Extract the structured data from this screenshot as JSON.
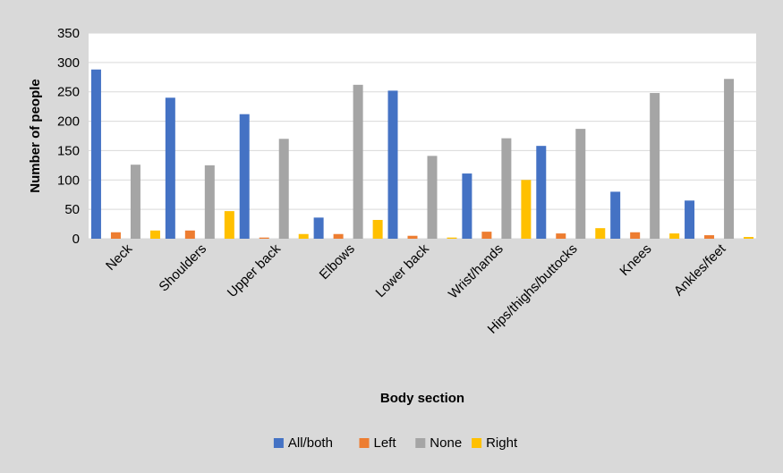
{
  "chart_data": {
    "type": "bar",
    "title": "",
    "xlabel": "Body section",
    "ylabel": "Number of people",
    "ylim": [
      0,
      350
    ],
    "y_ticks": [
      0,
      50,
      100,
      150,
      200,
      250,
      300,
      350
    ],
    "grid": true,
    "legend_position": "bottom",
    "categories": [
      "Neck",
      "Shoulders",
      "Upper back",
      "Elbows",
      "Lower back",
      "Wrist/hands",
      "Hips/thighs/buttocks",
      "Knees",
      "Ankles/feet"
    ],
    "series": [
      {
        "name": "All/both",
        "color": "#4472c4",
        "values": [
          288,
          240,
          212,
          36,
          252,
          111,
          158,
          80,
          65
        ]
      },
      {
        "name": "Left",
        "color": "#ed7d31",
        "values": [
          11,
          14,
          2,
          8,
          5,
          12,
          9,
          11,
          6
        ]
      },
      {
        "name": "None",
        "color": "#a5a5a5",
        "values": [
          126,
          125,
          170,
          262,
          141,
          171,
          187,
          248,
          272
        ]
      },
      {
        "name": "Right",
        "color": "#ffc000",
        "values": [
          14,
          47,
          8,
          32,
          2,
          100,
          18,
          9,
          3
        ]
      }
    ]
  }
}
